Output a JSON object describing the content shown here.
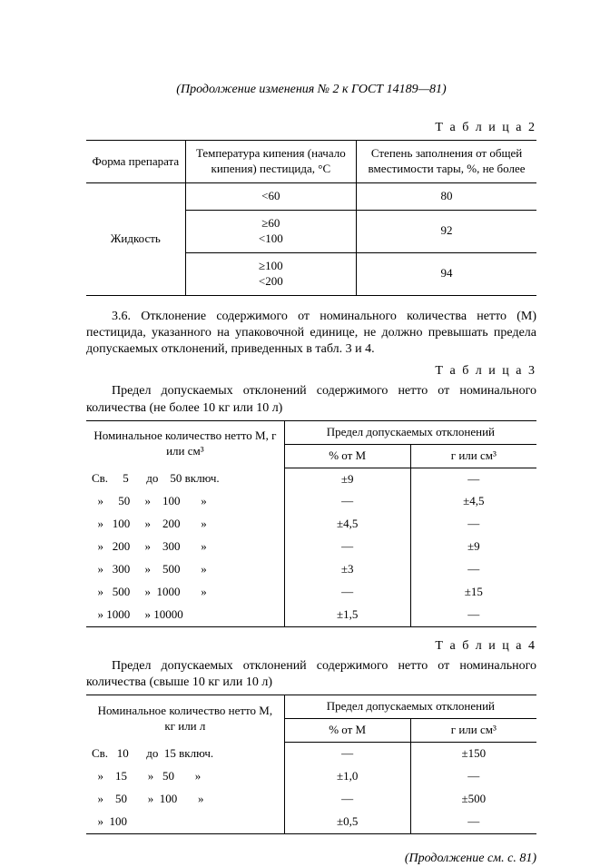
{
  "header": "(Продолжение изменения № 2 к ГОСТ 14189—81)",
  "table2": {
    "label": "Т а б л и ц а  2",
    "headers": {
      "col1": "Форма препарата",
      "col2": "Температура кипения (начало кипения) пестицида, °С",
      "col3": "Степень заполнения от общей вместимости тары, %, не более"
    },
    "row_label": "Жидкость",
    "rows": [
      {
        "temp": "<60",
        "fill": "80"
      },
      {
        "temp": "≥60\n<100",
        "fill": "92"
      },
      {
        "temp": "≥100\n<200",
        "fill": "94"
      }
    ]
  },
  "para36": "3.6. Отклонение содержимого от номинального количества нетто (М) пестицида, указанного на упаковочной единице, не должно превышать предела допускаемых отклонений, приведенных в табл. 3 и 4.",
  "table3": {
    "label": "Т а б л и ц а  3",
    "title": "Предел допускаемых отклонений содержимого нетто от номинального количества (не более 10 кг или 10 л)",
    "headers": {
      "col1": "Номинальное количество нетто М, г или см³",
      "top": "Предел допускаемых отклонений",
      "col2": "% от М",
      "col3": "г или см³"
    },
    "rows": [
      {
        "range": "Св.     5      до    50 включ.",
        "pct": "±9",
        "abs": "—"
      },
      {
        "range": "  »     50     »    100       »",
        "pct": "—",
        "abs": "±4,5"
      },
      {
        "range": "  »   100     »    200       »",
        "pct": "±4,5",
        "abs": "—"
      },
      {
        "range": "  »   200     »    300       »",
        "pct": "—",
        "abs": "±9"
      },
      {
        "range": "  »   300     »    500       »",
        "pct": "±3",
        "abs": "—"
      },
      {
        "range": "  »   500     »  1000       »",
        "pct": "—",
        "abs": "±15"
      },
      {
        "range": "  » 1000     » 10000",
        "pct": "±1,5",
        "abs": "—"
      }
    ]
  },
  "table4": {
    "label": "Т а б л и ц а  4",
    "title": "Предел допускаемых отклонений содержимого нетто от номинального количества (свыше 10 кг или 10 л)",
    "headers": {
      "col1": "Номинальное количество нетто М, кг или л",
      "top": "Предел допускаемых отклонений",
      "col2": "% от М",
      "col3": "г или см³"
    },
    "rows": [
      {
        "range": "Св.   10      до  15 включ.",
        "pct": "—",
        "abs": "±150"
      },
      {
        "range": "  »    15       »   50       »",
        "pct": "±1,0",
        "abs": "—"
      },
      {
        "range": "  »    50       »  100       »",
        "pct": "—",
        "abs": "±500"
      },
      {
        "range": "  »  100",
        "pct": "±0,5",
        "abs": "—"
      }
    ]
  },
  "footer": "(Продолжение см. с. 81)"
}
